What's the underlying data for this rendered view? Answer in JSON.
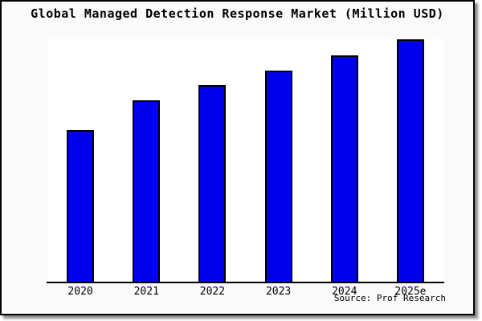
{
  "chart_data": {
    "type": "bar",
    "title": "Global Managed Detection Response Market (Million USD)",
    "categories": [
      "2020",
      "2021",
      "2022",
      "2023",
      "2024",
      "2025e"
    ],
    "values": [
      0.626,
      0.748,
      0.811,
      0.872,
      0.934,
      1.0
    ],
    "values_note": "relative bar heights (fraction of plot height); no y-axis ticks, gridlines or value labels are shown in the image",
    "ylim": [
      0,
      1.0
    ],
    "xlabel": "",
    "ylabel": "",
    "grid": false,
    "legend": "none",
    "y_axis": "hidden",
    "bar_color": "#0000ee",
    "bar_edge_color": "#000000",
    "plot_bg": "#ffffff",
    "canvas_bg": "#fafafa",
    "source": "Source: Prof Research"
  }
}
